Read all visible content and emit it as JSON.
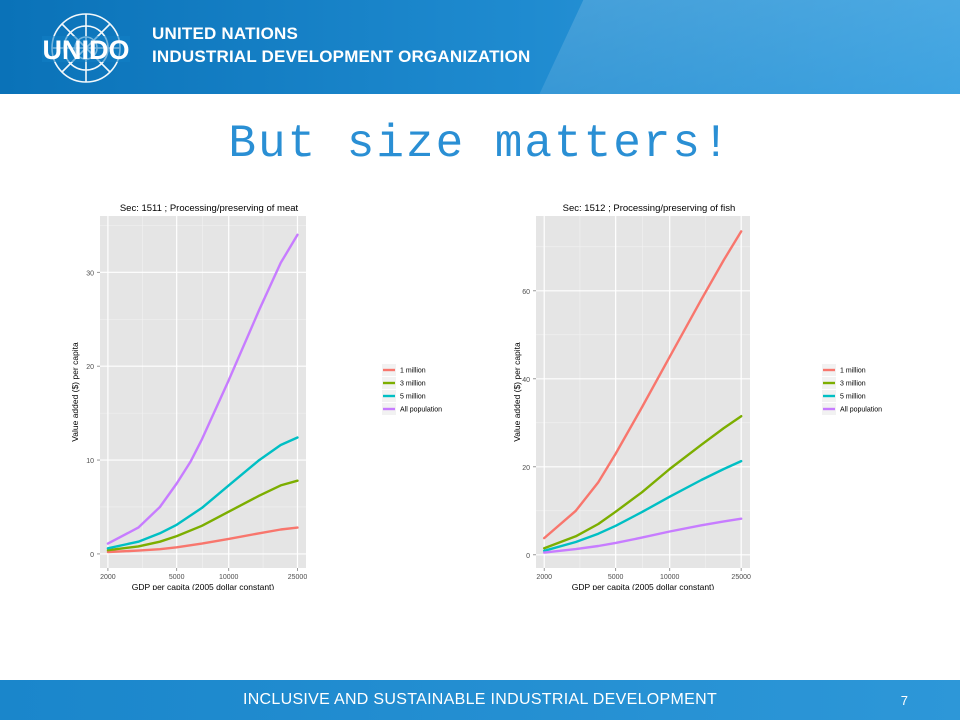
{
  "header": {
    "logo_text": "UNIDO",
    "org_line1": "UNITED NATIONS",
    "org_line2": "INDUSTRIAL DEVELOPMENT ORGANIZATION"
  },
  "slide": {
    "title": "But size matters!"
  },
  "colors": {
    "header": "#1380c4",
    "title": "#2a8fd4",
    "panel": "#e5e5e5"
  },
  "chart_data": [
    {
      "type": "line",
      "title": "Sec: 1511 ;  Processing/preserving of meat",
      "xlabel": "GDP per capita (2005 dollar constant)",
      "ylabel": "Value added ($) per capita",
      "x_scale": "log",
      "x_ticks": [
        2000,
        5000,
        10000,
        25000
      ],
      "x_range": [
        1800,
        28000
      ],
      "y_ticks": [
        0,
        10,
        20,
        30
      ],
      "y_range": [
        -1.5,
        36
      ],
      "grid": true,
      "legend_position": "right",
      "series": [
        {
          "name": "1 million",
          "color": "#f8766d",
          "x": [
            2000,
            3000,
            4000,
            5000,
            7000,
            10000,
            15000,
            20000,
            25000
          ],
          "y": [
            0.2,
            0.35,
            0.5,
            0.7,
            1.1,
            1.6,
            2.2,
            2.6,
            2.8
          ]
        },
        {
          "name": "3 million",
          "color": "#7cae00",
          "x": [
            2000,
            3000,
            4000,
            5000,
            7000,
            10000,
            15000,
            20000,
            25000
          ],
          "y": [
            0.4,
            0.8,
            1.3,
            1.9,
            3.0,
            4.5,
            6.2,
            7.3,
            7.8
          ]
        },
        {
          "name": "5 million",
          "color": "#00bfc4",
          "x": [
            2000,
            3000,
            4000,
            5000,
            7000,
            10000,
            15000,
            20000,
            25000
          ],
          "y": [
            0.6,
            1.3,
            2.2,
            3.1,
            4.9,
            7.3,
            10.0,
            11.6,
            12.4
          ]
        },
        {
          "name": "All population",
          "color": "#c77cff",
          "x": [
            2000,
            3000,
            4000,
            5000,
            6000,
            7000,
            10000,
            15000,
            20000,
            25000
          ],
          "y": [
            1.1,
            2.8,
            5.0,
            7.5,
            9.8,
            12.2,
            18.5,
            26.0,
            31.0,
            34.0
          ]
        }
      ]
    },
    {
      "type": "line",
      "title": "Sec: 1512 ;  Processing/preserving of fish",
      "xlabel": "GDP per capita (2005 dollar constant)",
      "ylabel": "Value added ($) per capita",
      "x_scale": "log",
      "x_ticks": [
        2000,
        5000,
        10000,
        25000
      ],
      "x_range": [
        1800,
        28000
      ],
      "y_ticks": [
        0,
        20,
        40,
        60
      ],
      "y_range": [
        -3,
        77
      ],
      "grid": true,
      "legend_position": "right",
      "series": [
        {
          "name": "1 million",
          "color": "#f8766d",
          "x": [
            2000,
            3000,
            4000,
            5000,
            7000,
            10000,
            15000,
            20000,
            25000
          ],
          "y": [
            3.8,
            10.0,
            16.5,
            23.0,
            33.5,
            45.0,
            58.0,
            67.0,
            73.5
          ]
        },
        {
          "name": "3 million",
          "color": "#7cae00",
          "x": [
            2000,
            3000,
            4000,
            5000,
            7000,
            10000,
            15000,
            20000,
            25000
          ],
          "y": [
            1.5,
            4.2,
            7.0,
            9.8,
            14.2,
            19.5,
            25.0,
            28.8,
            31.5
          ]
        },
        {
          "name": "5 million",
          "color": "#00bfc4",
          "x": [
            2000,
            3000,
            4000,
            5000,
            7000,
            10000,
            15000,
            20000,
            25000
          ],
          "y": [
            0.9,
            2.9,
            4.8,
            6.6,
            9.7,
            13.2,
            17.0,
            19.5,
            21.3
          ]
        },
        {
          "name": "All population",
          "color": "#c77cff",
          "x": [
            2000,
            3000,
            4000,
            5000,
            7000,
            10000,
            15000,
            20000,
            25000
          ],
          "y": [
            0.5,
            1.3,
            2.0,
            2.7,
            3.9,
            5.3,
            6.7,
            7.6,
            8.2
          ]
        }
      ]
    }
  ],
  "footer": {
    "text": "INCLUSIVE AND SUSTAINABLE INDUSTRIAL DEVELOPMENT",
    "page_number": "7"
  }
}
